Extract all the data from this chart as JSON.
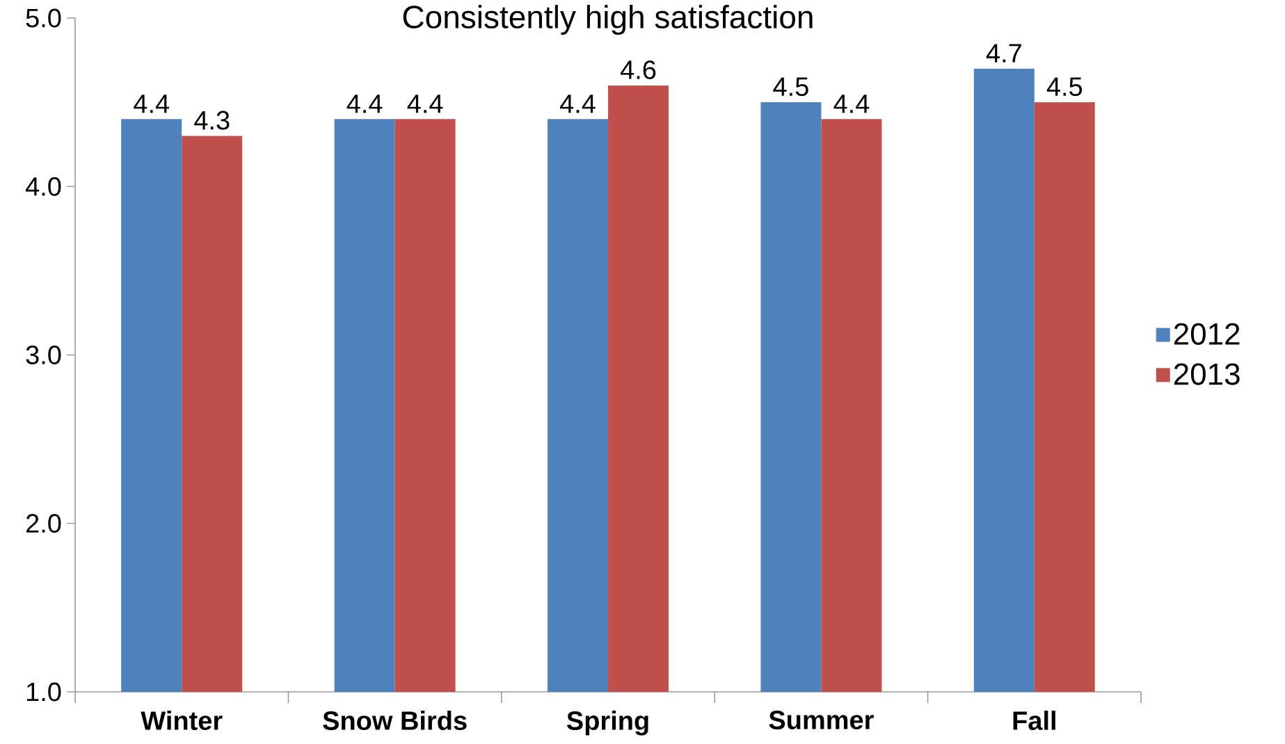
{
  "chart_data": {
    "type": "bar",
    "title": "Consistently high satisfaction",
    "categories": [
      "Winter",
      "Snow Birds",
      "Spring",
      "Summer",
      "Fall"
    ],
    "series": [
      {
        "name": "2012",
        "color": "#4f81bd",
        "values": [
          4.4,
          4.4,
          4.4,
          4.5,
          4.7
        ]
      },
      {
        "name": "2013",
        "color": "#c0504d",
        "values": [
          4.3,
          4.4,
          4.6,
          4.4,
          4.5
        ]
      }
    ],
    "ylim": [
      1,
      5
    ],
    "yticks": [
      {
        "value": 1,
        "label": "1.0"
      },
      {
        "value": 2,
        "label": "2.0"
      },
      {
        "value": 3,
        "label": "3.0"
      },
      {
        "value": 4,
        "label": "4.0"
      },
      {
        "value": 5,
        "label": "5.0"
      }
    ],
    "data_labels": true,
    "grid": false,
    "legend": "right"
  }
}
